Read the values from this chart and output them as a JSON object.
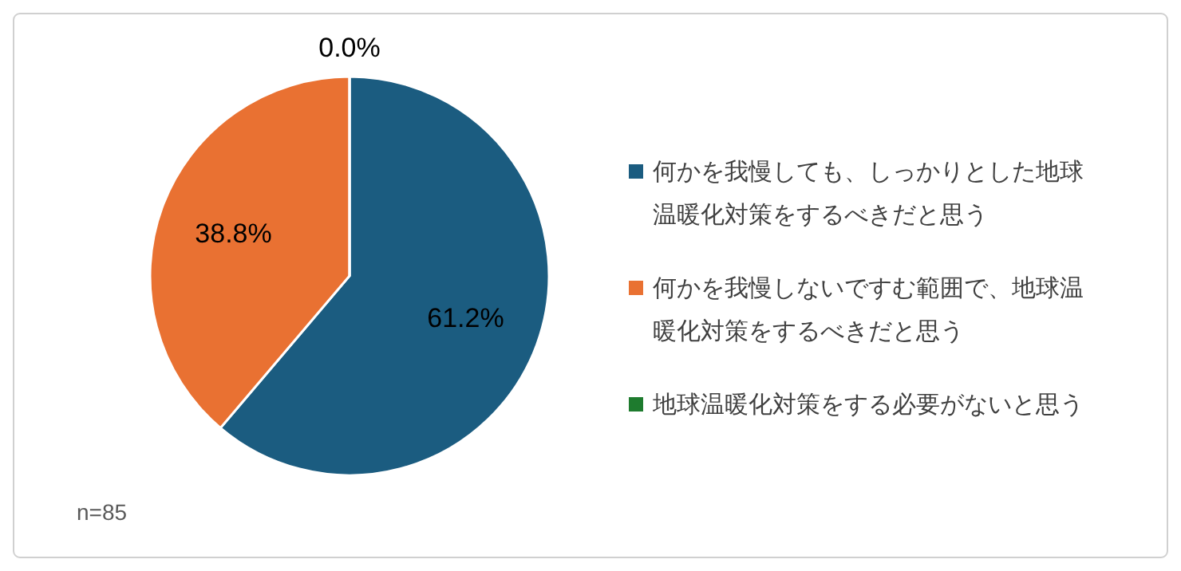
{
  "chart_data": {
    "type": "pie",
    "categories": [
      "何かを我慢しても、しっかりとした地球温暖化対策をするべきだと思う",
      "何かを我慢しないですむ範囲で、地球温暖化対策をするべきだと思う",
      "地球温暖化対策をする必要がないと思う"
    ],
    "values": [
      61.2,
      38.8,
      0.0
    ],
    "colors": [
      "#1b5c80",
      "#e97132",
      "#1e7b2e"
    ],
    "value_labels": [
      "61.2%",
      "38.8%",
      "0.0%"
    ],
    "legend": "right",
    "annotations": [
      "n=85"
    ]
  }
}
